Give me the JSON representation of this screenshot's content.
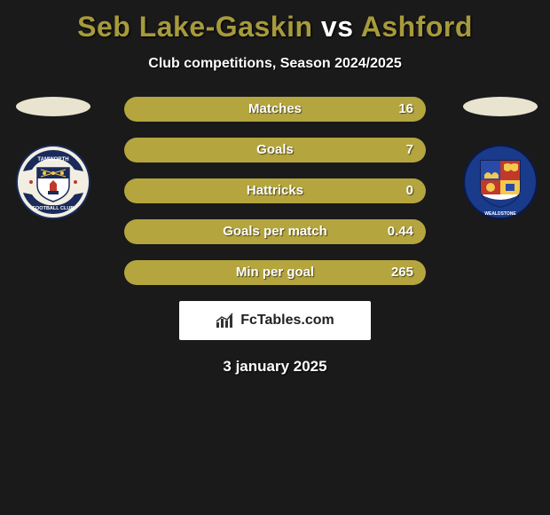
{
  "title": {
    "player1": "Seb Lake-Gaskin",
    "vs": "vs",
    "player2": "Ashford",
    "player1_color": "#a79a3c",
    "vs_color": "#ffffff",
    "player2_color": "#a79a3c"
  },
  "subtitle": "Club competitions, Season 2024/2025",
  "colors": {
    "background": "#1a1a1a",
    "bar_track": "#736a33",
    "bar_fill": "#b5a53e",
    "halo_left": "#e8e4d0",
    "halo_right": "#e8e4d0",
    "text": "#ffffff"
  },
  "crests": {
    "left": {
      "bg": "#f5f2e6",
      "name": "Tamworth FC crest"
    },
    "right": {
      "bg": "#f0ede0",
      "name": "Wealdstone crest"
    }
  },
  "bars": [
    {
      "label": "Matches",
      "value": "16",
      "fill_pct": 100
    },
    {
      "label": "Goals",
      "value": "7",
      "fill_pct": 100
    },
    {
      "label": "Hattricks",
      "value": "0",
      "fill_pct": 100
    },
    {
      "label": "Goals per match",
      "value": "0.44",
      "fill_pct": 100
    },
    {
      "label": "Min per goal",
      "value": "265",
      "fill_pct": 100
    }
  ],
  "footer": {
    "brand": "FcTables.com"
  },
  "date": "3 january 2025"
}
